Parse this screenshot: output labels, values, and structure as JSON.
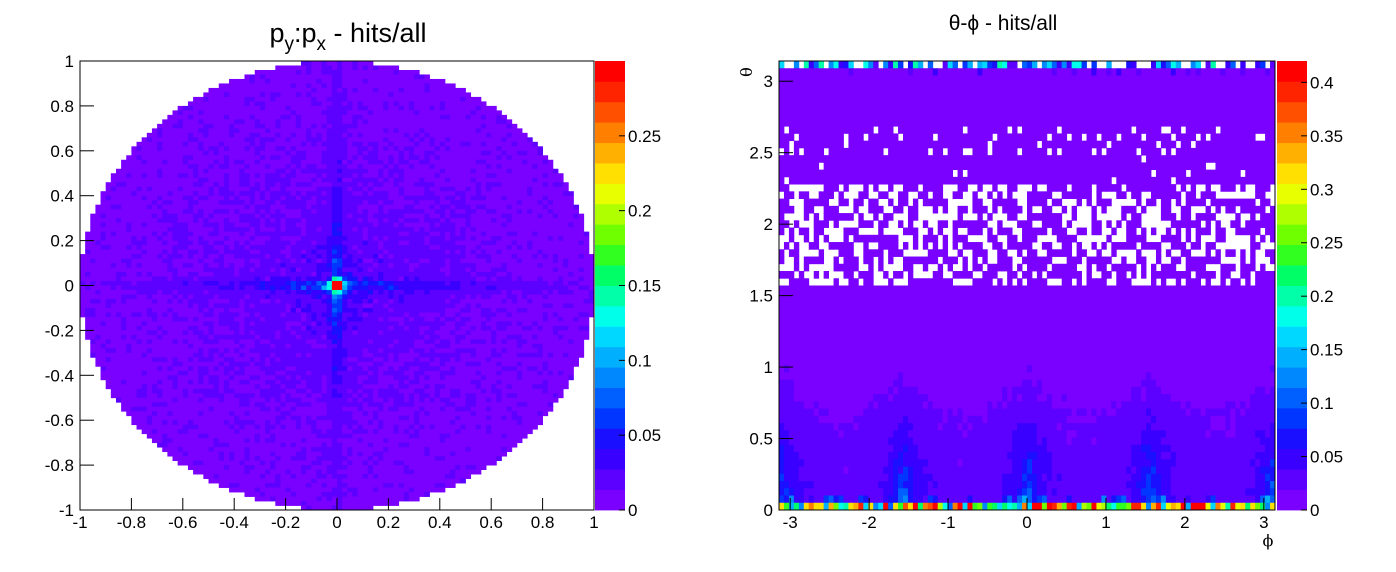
{
  "palette": [
    "#7a00ff",
    "#5c00ff",
    "#3a00ff",
    "#1a10ff",
    "#0036ff",
    "#0060ff",
    "#0088ff",
    "#00b0ff",
    "#00d8ff",
    "#00ffea",
    "#00ffa8",
    "#00ff66",
    "#30ff20",
    "#70ff00",
    "#b0ff00",
    "#e8ff00",
    "#ffe000",
    "#ffb000",
    "#ff8000",
    "#ff5000",
    "#ff2400",
    "#ff0000"
  ],
  "chart_data": [
    {
      "type": "heatmap",
      "title": "p",
      "title_parts": [
        "p",
        "y",
        ":",
        "p",
        "x",
        " - hits/all"
      ],
      "xlabel": "",
      "ylabel": "",
      "xlim": [
        -1,
        1
      ],
      "ylim": [
        -1,
        1
      ],
      "zlim": [
        0,
        0.3
      ],
      "xticks": [
        "-1",
        "-0.8",
        "-0.6",
        "-0.4",
        "-0.2",
        "0",
        "0.2",
        "0.4",
        "0.6",
        "0.8",
        "1"
      ],
      "yticks": [
        "-1",
        "-0.8",
        "-0.6",
        "-0.4",
        "-0.2",
        "0",
        "0.2",
        "0.4",
        "0.6",
        "0.8",
        "1"
      ],
      "zticks": [
        "0",
        "0.05",
        "0.1",
        "0.15",
        "0.2",
        "0.25"
      ],
      "description": "Values fill a disk of radius 1; ~0.01 background, cross along x=0 and y=0 up to ~0.12, peak ~0.3 at origin",
      "disk_radius": 1.0,
      "background_value": 0.01,
      "cross_value": 0.11,
      "peak_value": 0.3
    },
    {
      "type": "heatmap",
      "title": "θ-ϕ - hits/all",
      "xlabel": "ϕ",
      "ylabel": "θ",
      "xlim": [
        -3.1416,
        3.1416
      ],
      "ylim": [
        0,
        3.1416
      ],
      "zlim": [
        0,
        0.42
      ],
      "xticks": [
        "-3",
        "-2",
        "-1",
        "0",
        "1",
        "2",
        "3"
      ],
      "yticks": [
        "0",
        "0.5",
        "1",
        "1.5",
        "2",
        "2.5",
        "3"
      ],
      "zticks": [
        "0",
        "0.05",
        "0.1",
        "0.15",
        "0.2",
        "0.25",
        "0.3",
        "0.35",
        "0.4"
      ],
      "background_value": 0.005,
      "empty_band_theta": [
        1.55,
        2.6
      ],
      "peaks_phi": [
        -1.5708,
        0,
        1.5708,
        3.1416
      ],
      "row_theta_0_value": 0.3,
      "row_theta_top_value": 0.15
    }
  ]
}
